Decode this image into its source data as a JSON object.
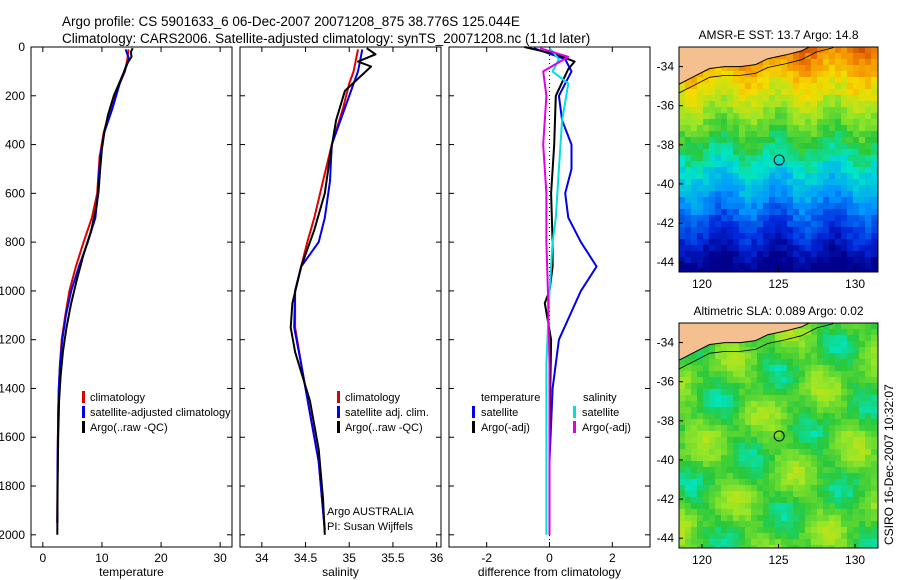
{
  "header": {
    "title_line1": "Argo profile: CS 5901633_6 06-Dec-2007 20071208_875 38.776S 125.044E",
    "title_line2": "Climatology: CARS2006. Satellite-adjusted climatology: synTS_20071208.nc (1.1d later)"
  },
  "colors": {
    "climatology": "#e00000",
    "satellite": "#0000ee",
    "argo": "#000000",
    "satellite_diff": "#00e0e0",
    "argo_adj_diff": "#e000e0",
    "land": "#f5c08f"
  },
  "footer": {
    "argo_centre": "Argo AUSTRALIA",
    "pi": "PI: Susan Wijffels",
    "timestamp": "CSIRO 16-Dec-2007 10:32:07"
  },
  "chart_data": [
    {
      "type": "line",
      "id": "temperature",
      "xlabel": "temperature",
      "xlim": [
        -2,
        32
      ],
      "xticks": [
        0,
        10,
        20,
        30
      ],
      "ylim": [
        2050,
        0
      ],
      "yticks": [
        0,
        200,
        400,
        600,
        800,
        1000,
        1200,
        1400,
        1600,
        1800,
        2000
      ],
      "legend": [
        "climatology",
        "satellite-adjusted climatology",
        "Argo(..raw -QC)"
      ],
      "series": [
        {
          "name": "climatology",
          "color": "#e00000",
          "x": [
            14.5,
            14.3,
            13.9,
            13.0,
            11.5,
            10.3,
            9.6,
            9.2,
            8.3,
            6.9,
            5.6,
            4.5,
            3.8,
            3.2,
            2.9,
            2.7,
            2.6,
            2.5,
            2.45
          ],
          "y": [
            10,
            50,
            100,
            150,
            250,
            350,
            450,
            600,
            700,
            800,
            900,
            1000,
            1100,
            1200,
            1300,
            1400,
            1500,
            1700,
            1950
          ]
        },
        {
          "name": "satellite-adjusted climatology",
          "color": "#0000ee",
          "x": [
            14.0,
            14.6,
            13.8,
            13.0,
            11.8,
            10.4,
            9.7,
            9.3,
            8.9,
            7.6,
            6.1,
            4.8,
            3.9,
            3.3,
            2.9,
            2.7,
            2.6,
            2.5,
            2.45
          ],
          "y": [
            10,
            50,
            100,
            150,
            250,
            350,
            450,
            600,
            700,
            800,
            900,
            1000,
            1100,
            1200,
            1300,
            1400,
            1500,
            1700,
            1950
          ]
        },
        {
          "name": "Argo(..raw -QC)",
          "color": "#000000",
          "x": [
            15.2,
            14.9,
            15.0,
            14.2,
            13.6,
            12.0,
            11.0,
            10.4,
            10.0,
            9.7,
            9.4,
            9.1,
            8.2,
            6.9,
            5.8,
            4.8,
            4.0,
            3.4,
            3.0,
            2.75,
            2.6,
            2.5,
            2.45
          ],
          "y": [
            5,
            20,
            40,
            70,
            110,
            200,
            280,
            350,
            420,
            500,
            600,
            650,
            750,
            850,
            950,
            1050,
            1150,
            1250,
            1350,
            1450,
            1600,
            1800,
            2000
          ]
        }
      ]
    },
    {
      "type": "line",
      "id": "salinity",
      "xlabel": "salinity",
      "xlim": [
        33.75,
        36.05
      ],
      "xticks": [
        34,
        34.5,
        35,
        35.5,
        36
      ],
      "ylim": [
        2050,
        0
      ],
      "legend": [
        "climatology",
        "satellite adj. clim.",
        "Argo(..raw -QC)"
      ],
      "series": [
        {
          "name": "climatology",
          "color": "#e00000",
          "x": [
            35.1,
            35.05,
            35.0,
            34.93,
            34.8,
            34.7,
            34.6,
            34.52,
            34.45,
            34.38,
            34.38,
            34.45,
            34.55,
            34.65,
            34.7,
            34.72
          ],
          "y": [
            10,
            100,
            150,
            250,
            400,
            550,
            700,
            800,
            900,
            1000,
            1150,
            1300,
            1500,
            1700,
            1900,
            1980
          ]
        },
        {
          "name": "satellite adj. clim.",
          "color": "#0000ee",
          "x": [
            35.15,
            35.1,
            35.05,
            34.95,
            34.8,
            34.78,
            34.72,
            34.65,
            34.45,
            34.38,
            34.37,
            34.45,
            34.55,
            34.65,
            34.7,
            34.72
          ],
          "y": [
            10,
            100,
            150,
            250,
            400,
            550,
            700,
            800,
            900,
            1000,
            1150,
            1300,
            1500,
            1700,
            1900,
            1980
          ]
        },
        {
          "name": "Argo(..raw -QC)",
          "color": "#000000",
          "x": [
            35.2,
            35.3,
            35.1,
            35.25,
            34.95,
            34.85,
            34.78,
            34.72,
            34.6,
            34.45,
            34.35,
            34.33,
            34.38,
            34.55,
            34.65,
            34.7,
            34.72
          ],
          "y": [
            5,
            30,
            60,
            80,
            180,
            300,
            450,
            600,
            750,
            900,
            1050,
            1150,
            1250,
            1450,
            1650,
            1850,
            2000
          ]
        }
      ]
    },
    {
      "type": "line",
      "id": "difference",
      "xlabel": "difference from climatology",
      "xlim": [
        -3.2,
        3.2
      ],
      "xticks": [
        -2,
        0,
        2
      ],
      "ylim": [
        2050,
        0
      ],
      "legend_title_left": "temperature",
      "legend_title_right": "salinity",
      "legend_left": [
        "satellite",
        "Argo(-adj)"
      ],
      "legend_right": [
        "satellite",
        "Argo(-adj)"
      ],
      "series": [
        {
          "name": "temperature satellite",
          "color": "#0000ee",
          "x": [
            -0.5,
            0.5,
            0.7,
            0.3,
            0.4,
            0.7,
            0.7,
            0.5,
            0.6,
            1.0,
            1.5,
            1.0,
            0.3,
            0.1,
            0.0,
            0.0
          ],
          "y": [
            5,
            50,
            100,
            200,
            300,
            400,
            500,
            600,
            700,
            800,
            900,
            1000,
            1200,
            1400,
            1700,
            2000
          ]
        },
        {
          "name": "temperature Argo(-adj)",
          "color": "#000000",
          "x": [
            -0.8,
            0.2,
            0.8,
            0.6,
            0.2,
            0.15,
            0.05,
            0.1,
            0.1,
            0.0,
            -0.15,
            0.05,
            0.0,
            0.0
          ],
          "y": [
            0,
            30,
            60,
            90,
            200,
            400,
            600,
            800,
            900,
            1000,
            1050,
            1200,
            1600,
            2000
          ]
        },
        {
          "name": "salinity satellite",
          "color": "#00e0e0",
          "x": [
            0.0,
            0.3,
            0.1,
            0.6,
            0.4,
            0.3,
            0.2,
            0.1,
            0.0,
            -0.1,
            -0.1
          ],
          "y": [
            5,
            50,
            100,
            150,
            300,
            500,
            700,
            800,
            1000,
            1300,
            2000
          ]
        },
        {
          "name": "salinity Argo(-adj)",
          "color": "#e000e0",
          "x": [
            -0.3,
            0.6,
            -0.2,
            -0.1,
            -0.2,
            -0.1,
            -0.1,
            -0.05,
            0.0,
            0.0
          ],
          "y": [
            5,
            40,
            100,
            200,
            400,
            600,
            800,
            1000,
            1300,
            2000
          ]
        }
      ]
    },
    {
      "type": "heatmap",
      "id": "sst_map",
      "title": "AMSR-E SST: 13.7 Argo: 14.8",
      "xlim": [
        118.5,
        131.5
      ],
      "ylim": [
        -44.5,
        -33
      ],
      "xticks": [
        120,
        125,
        130
      ],
      "yticks": [
        -34,
        -36,
        -38,
        -40,
        -42,
        -44
      ],
      "marker": {
        "lon": 125.044,
        "lat": -38.776
      }
    },
    {
      "type": "heatmap",
      "id": "sla_map",
      "title": "Altimetric SLA: 0.089 Argo: 0.02",
      "xlim": [
        118.5,
        131.5
      ],
      "ylim": [
        -44.5,
        -33
      ],
      "xticks": [
        120,
        125,
        130
      ],
      "yticks": [
        -34,
        -36,
        -38,
        -40,
        -42,
        -44
      ],
      "marker": {
        "lon": 125.044,
        "lat": -38.776
      }
    }
  ]
}
